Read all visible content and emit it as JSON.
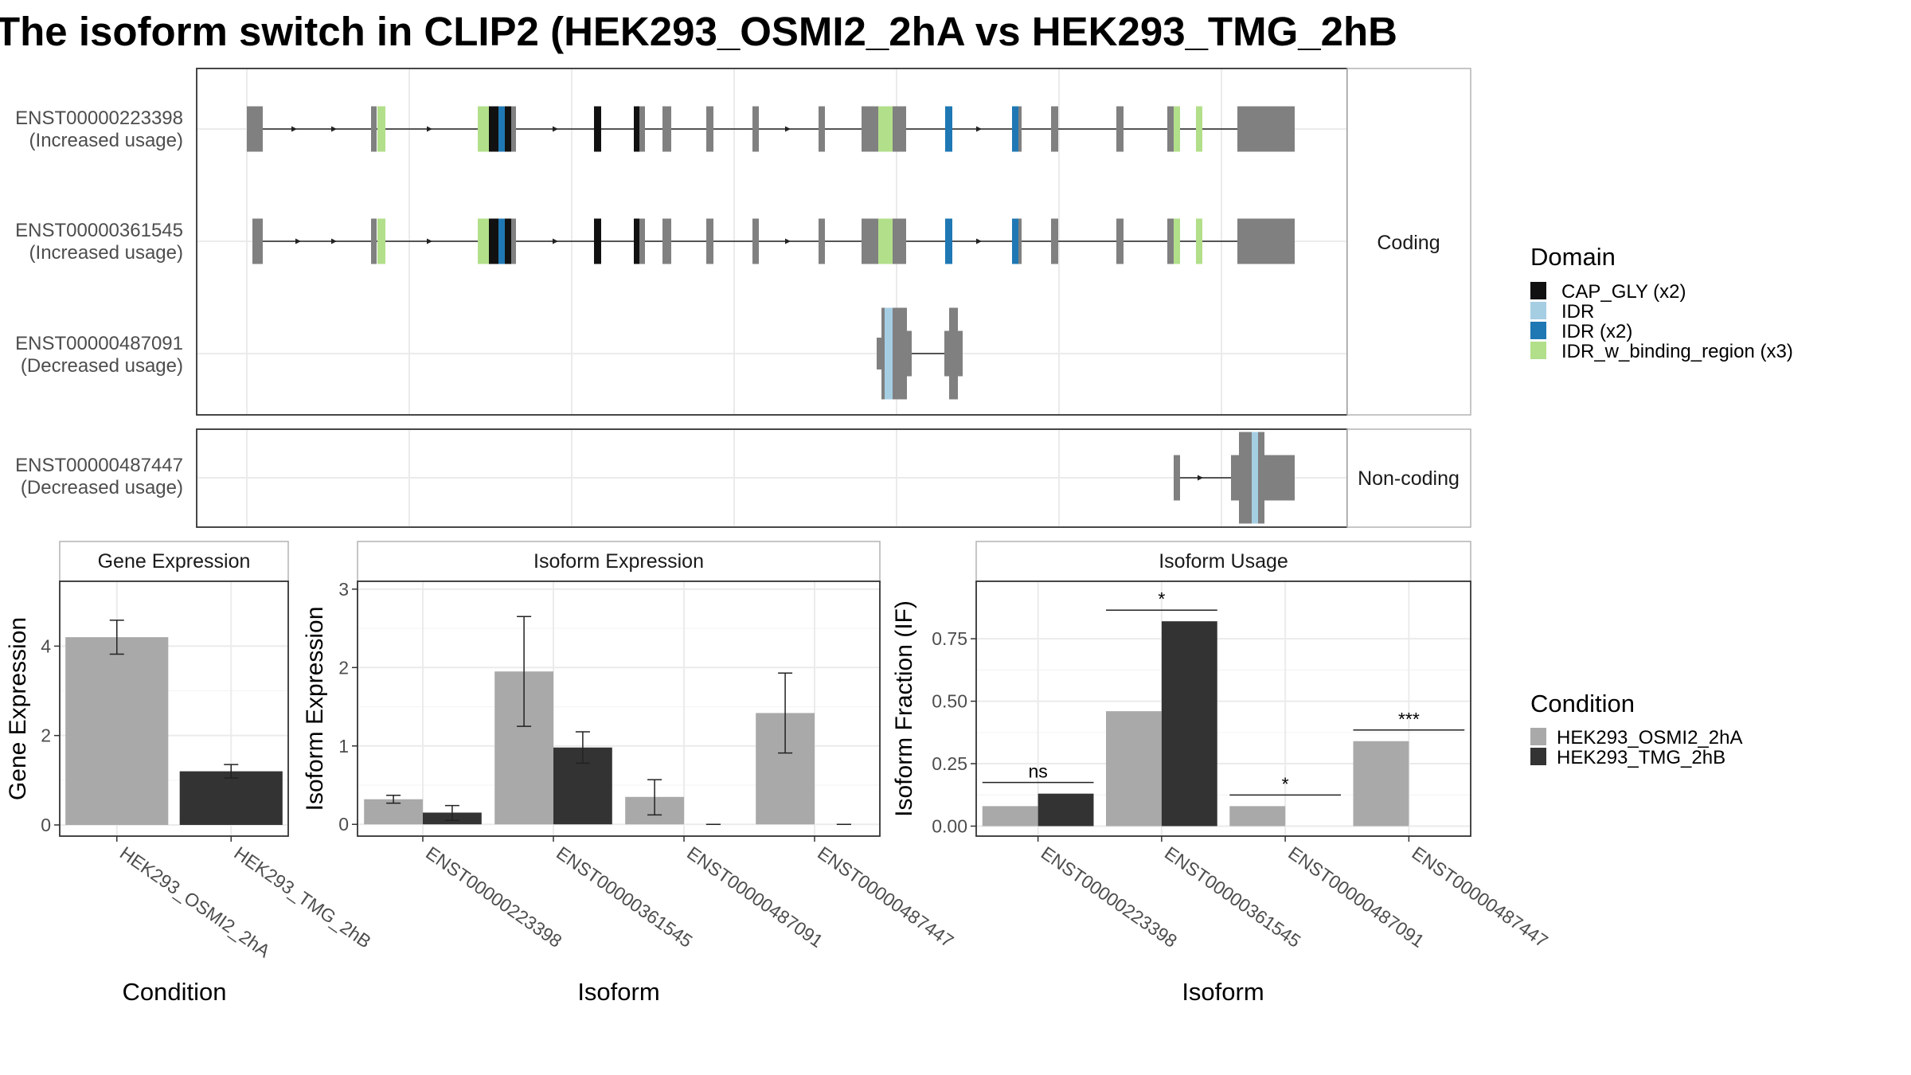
{
  "chart_data": [
    {
      "type": "gene-structure",
      "title": "The isoform switch in CLIP2 (HEK293_OSMI2_2hA vs HEK293_TMG_2hB",
      "panels": [
        {
          "label": "Coding",
          "rows": [
            0,
            1,
            2
          ]
        },
        {
          "label": "Non-coding",
          "rows": [
            3
          ]
        }
      ],
      "transcripts": [
        {
          "id": "ENST00000223398",
          "note": "(Increased usage)"
        },
        {
          "id": "ENST00000361545",
          "note": "(Increased usage)"
        },
        {
          "id": "ENST00000487091",
          "note": "(Decreased usage)"
        },
        {
          "id": "ENST00000487447",
          "note": "(Decreased usage)"
        }
      ],
      "legend": {
        "title": "Domain",
        "placement": "right",
        "entries": [
          {
            "label": "CAP_GLY (x2)",
            "color": "#111111"
          },
          {
            "label": "IDR",
            "color": "#a6cee3"
          },
          {
            "label": "IDR (x2)",
            "color": "#1f78b4"
          },
          {
            "label": "IDR_w_binding_region (x3)",
            "color": "#b2df8a"
          }
        ]
      }
    },
    {
      "type": "bar",
      "title": "Gene Expression",
      "xlabel": "Condition",
      "ylabel": "Gene Expression",
      "categories": [
        "HEK293_OSMI2_2hA",
        "HEK293_TMG_2hB"
      ],
      "values": [
        4.2,
        1.2
      ],
      "error": [
        [
          3.82,
          4.58
        ],
        [
          1.05,
          1.35
        ]
      ],
      "colors": [
        "#a9a9a9",
        "#333333"
      ],
      "ylim": [
        -0.25,
        5.45
      ],
      "yticks": [
        "0",
        "2",
        "4"
      ],
      "grid": true
    },
    {
      "type": "bar",
      "title": "Isoform Expression",
      "xlabel": "Isoform",
      "ylabel": "Isoform Expression",
      "categories": [
        "ENST00000223398",
        "ENST00000361545",
        "ENST00000487091",
        "ENST00000487447"
      ],
      "series": [
        {
          "name": "HEK293_OSMI2_2hA",
          "values": [
            0.32,
            1.95,
            0.35,
            1.42
          ],
          "error": [
            [
              0.27,
              0.37
            ],
            [
              1.25,
              2.65
            ],
            [
              0.12,
              0.57
            ],
            [
              0.91,
              1.93
            ]
          ]
        },
        {
          "name": "HEK293_TMG_2hB",
          "values": [
            0.15,
            0.98,
            0.0,
            0.0
          ],
          "error": [
            [
              0.05,
              0.24
            ],
            [
              0.78,
              1.18
            ],
            [
              0.0,
              0.0
            ],
            [
              0.0,
              0.0
            ]
          ]
        }
      ],
      "ylim": [
        -0.15,
        3.1
      ],
      "yticks": [
        "0",
        "1",
        "2",
        "3"
      ],
      "grid": true
    },
    {
      "type": "bar",
      "title": "Isoform Usage",
      "xlabel": "Isoform",
      "ylabel": "Isoform Fraction (IF)",
      "categories": [
        "ENST00000223398",
        "ENST00000361545",
        "ENST00000487091",
        "ENST00000487447"
      ],
      "series": [
        {
          "name": "HEK293_OSMI2_2hA",
          "values": [
            0.08,
            0.46,
            0.08,
            0.34
          ]
        },
        {
          "name": "HEK293_TMG_2hB",
          "values": [
            0.13,
            0.82,
            0.0,
            0.0
          ]
        }
      ],
      "significance": [
        "ns",
        "*",
        "*",
        "***"
      ],
      "ylim": [
        -0.04,
        0.98
      ],
      "yticks": [
        "0.00",
        "0.25",
        "0.50",
        "0.75"
      ],
      "grid": true,
      "legend": {
        "title": "Condition",
        "placement": "right",
        "entries": [
          {
            "label": "HEK293_OSMI2_2hA",
            "color": "#a9a9a9"
          },
          {
            "label": "HEK293_TMG_2hB",
            "color": "#333333"
          }
        ]
      }
    }
  ]
}
